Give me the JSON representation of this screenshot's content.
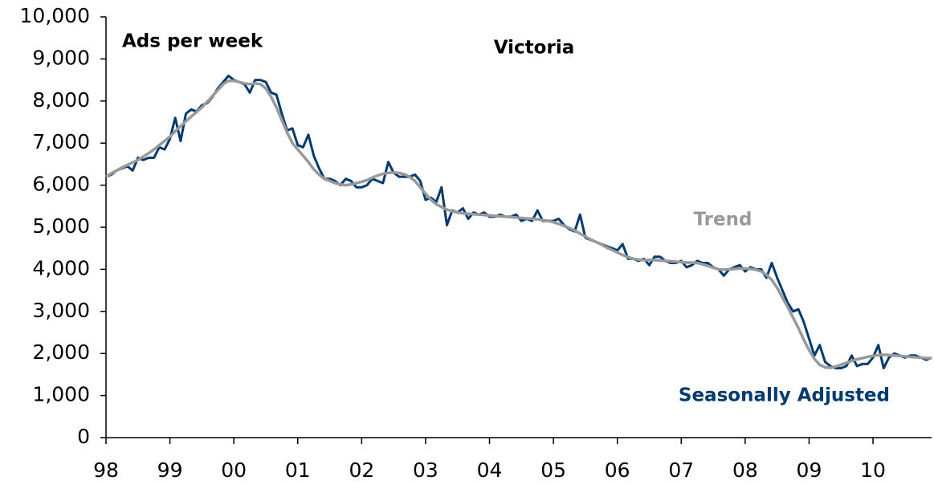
{
  "chart_data": {
    "type": "line",
    "title": "Victoria",
    "y_label": "Ads per week",
    "x": [
      0,
      1,
      2,
      3,
      4,
      5,
      6,
      7,
      8,
      9,
      10,
      11,
      12,
      13,
      14,
      15,
      16,
      17,
      18,
      19,
      20,
      21,
      22,
      23,
      24,
      25,
      26,
      27,
      28,
      29,
      30,
      31,
      32,
      33,
      34,
      35,
      36,
      37,
      38,
      39,
      40,
      41,
      42,
      43,
      44,
      45,
      46,
      47,
      48,
      49,
      50,
      51,
      52,
      53,
      54,
      55,
      56,
      57,
      58,
      59,
      60,
      61,
      62,
      63,
      64,
      65,
      66,
      67,
      68,
      69,
      70,
      71,
      72,
      73,
      74,
      75,
      76,
      77,
      78,
      79,
      80,
      81,
      82,
      83,
      84,
      85,
      86,
      87,
      88,
      89,
      90,
      91,
      92,
      93,
      94,
      95,
      96,
      97,
      98,
      99,
      100,
      101,
      102,
      103,
      104,
      105,
      106,
      107,
      108,
      109,
      110,
      111,
      112,
      113,
      114,
      115,
      116,
      117,
      118,
      119,
      120,
      121,
      122,
      123,
      124,
      125,
      126,
      127,
      128,
      129,
      130,
      131,
      132,
      133,
      134,
      135,
      136,
      137,
      138,
      139,
      140,
      141,
      142,
      143,
      144,
      145,
      146,
      147,
      148,
      149,
      150,
      151,
      152,
      153,
      154,
      155
    ],
    "series": [
      {
        "name": "Seasonally Adjusted",
        "color": "#003a70",
        "values": [
          6200,
          6250,
          6350,
          6400,
          6450,
          6350,
          6650,
          6600,
          6650,
          6650,
          6900,
          6850,
          7100,
          7600,
          7050,
          7700,
          7800,
          7750,
          7900,
          7950,
          8100,
          8300,
          8450,
          8600,
          8500,
          8450,
          8400,
          8200,
          8500,
          8500,
          8450,
          8200,
          8150,
          7700,
          7300,
          7350,
          6950,
          6900,
          7200,
          6700,
          6400,
          6150,
          6150,
          6100,
          6000,
          6150,
          6100,
          5950,
          5950,
          6000,
          6150,
          6100,
          6050,
          6550,
          6300,
          6200,
          6200,
          6200,
          6250,
          6100,
          5650,
          5700,
          5600,
          5950,
          5050,
          5400,
          5350,
          5450,
          5200,
          5350,
          5300,
          5350,
          5250,
          5250,
          5300,
          5250,
          5250,
          5300,
          5150,
          5200,
          5150,
          5400,
          5150,
          5150,
          5150,
          5200,
          5050,
          4950,
          4900,
          5300,
          4750,
          4700,
          4650,
          4600,
          4550,
          4500,
          4450,
          4600,
          4250,
          4250,
          4200,
          4250,
          4100,
          4300,
          4300,
          4200,
          4150,
          4150,
          4200,
          4050,
          4100,
          4200,
          4150,
          4150,
          4050,
          4000,
          3850,
          4000,
          4050,
          4100,
          3950,
          4050,
          4000,
          4000,
          3800,
          4150,
          3800,
          3500,
          3200,
          3000,
          3050,
          2750,
          2350,
          1950,
          2200,
          1800,
          1700,
          1650,
          1650,
          1700,
          1950,
          1700,
          1750,
          1750,
          1900,
          2200,
          1650,
          1900,
          2000,
          1950,
          1900,
          1950,
          1950,
          1900,
          1850,
          1900
        ]
      },
      {
        "name": "Trend",
        "color": "#999999",
        "values": [
          6200,
          6280,
          6350,
          6420,
          6480,
          6540,
          6600,
          6680,
          6760,
          6850,
          6950,
          7050,
          7150,
          7280,
          7400,
          7520,
          7630,
          7740,
          7850,
          7980,
          8120,
          8260,
          8400,
          8480,
          8480,
          8450,
          8420,
          8400,
          8420,
          8400,
          8300,
          8100,
          7850,
          7550,
          7250,
          7000,
          6850,
          6700,
          6550,
          6380,
          6250,
          6150,
          6100,
          6050,
          6020,
          6000,
          6020,
          6050,
          6080,
          6120,
          6180,
          6230,
          6270,
          6290,
          6300,
          6290,
          6260,
          6200,
          6100,
          5950,
          5800,
          5650,
          5550,
          5480,
          5420,
          5380,
          5350,
          5330,
          5320,
          5310,
          5300,
          5290,
          5280,
          5270,
          5260,
          5250,
          5240,
          5230,
          5220,
          5210,
          5200,
          5190,
          5170,
          5150,
          5120,
          5080,
          5030,
          4980,
          4920,
          4850,
          4780,
          4710,
          4650,
          4590,
          4520,
          4460,
          4400,
          4340,
          4290,
          4250,
          4230,
          4220,
          4220,
          4220,
          4210,
          4200,
          4190,
          4180,
          4170,
          4160,
          4160,
          4150,
          4120,
          4080,
          4040,
          4000,
          3990,
          4000,
          4010,
          4020,
          4020,
          4010,
          3990,
          3950,
          3870,
          3750,
          3560,
          3330,
          3100,
          2850,
          2600,
          2330,
          2080,
          1870,
          1730,
          1670,
          1660,
          1690,
          1730,
          1780,
          1820,
          1860,
          1890,
          1920,
          1940,
          1960,
          1970,
          1960,
          1950,
          1940,
          1930,
          1920,
          1910,
          1900,
          1890,
          1890
        ]
      }
    ],
    "xlim": [
      0,
      155
    ],
    "xticks": [
      {
        "value": 0,
        "label": "98"
      },
      {
        "value": 12,
        "label": "99"
      },
      {
        "value": 24,
        "label": "00"
      },
      {
        "value": 36,
        "label": "01"
      },
      {
        "value": 48,
        "label": "02"
      },
      {
        "value": 60,
        "label": "03"
      },
      {
        "value": 72,
        "label": "04"
      },
      {
        "value": 84,
        "label": "05"
      },
      {
        "value": 96,
        "label": "06"
      },
      {
        "value": 108,
        "label": "07"
      },
      {
        "value": 120,
        "label": "08"
      },
      {
        "value": 132,
        "label": "09"
      },
      {
        "value": 144,
        "label": "10"
      }
    ],
    "ylim": [
      0,
      10000
    ],
    "yticks": [
      0,
      {
        "value": 1000,
        "label": "1,000"
      },
      {
        "value": 2000,
        "label": "2,000"
      },
      {
        "value": 3000,
        "label": "3,000"
      },
      {
        "value": 4000,
        "label": "4,000"
      },
      {
        "value": 5000,
        "label": "5,000"
      },
      {
        "value": 6000,
        "label": "6,000"
      },
      {
        "value": 7000,
        "label": "7,000"
      },
      {
        "value": 8000,
        "label": "8,000"
      },
      {
        "value": 9000,
        "label": "9,000"
      },
      {
        "value": 10000,
        "label": "10,000"
      }
    ],
    "grid": false
  }
}
